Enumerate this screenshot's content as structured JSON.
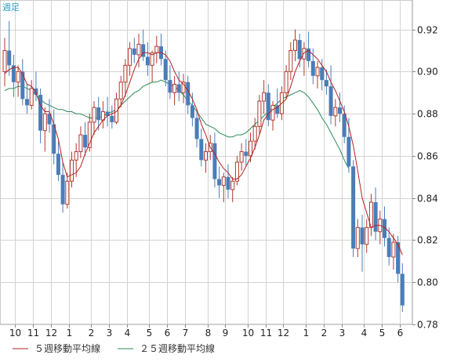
{
  "chart_data": {
    "type": "candlestick",
    "title": "週足",
    "y_ticks": [
      "0.92",
      "0.90",
      "0.88",
      "0.86",
      "0.84",
      "0.82",
      "0.80",
      "0.78"
    ],
    "y_tick_values": [
      0.92,
      0.9,
      0.88,
      0.86,
      0.84,
      0.82,
      0.8,
      0.78
    ],
    "ylim": [
      0.78,
      0.934
    ],
    "x_tick_labels": [
      "10",
      "11",
      "12",
      "1",
      "2",
      "3",
      "4",
      "5",
      "6",
      "7",
      "8",
      "9",
      "10",
      "11",
      "12",
      "1",
      "2",
      "3",
      "4",
      "5",
      "6"
    ],
    "x_tick_bars": [
      2,
      6,
      10,
      14,
      19,
      23,
      27,
      32,
      36,
      40,
      45,
      49,
      54,
      58,
      62,
      67,
      71,
      75,
      80,
      84,
      88
    ],
    "grid": true,
    "legend": [
      {
        "name": "５週移動平均線",
        "color": "#b22222"
      },
      {
        "name": "２５週移動平均線",
        "color": "#2e8b57"
      }
    ],
    "colors": {
      "up": "#b03a2e",
      "down": "#4a7db8",
      "ma5": "#b22222",
      "ma25": "#2e8b57"
    },
    "ohlc": [
      [
        0.9,
        0.916,
        0.893,
        0.91
      ],
      [
        0.91,
        0.924,
        0.898,
        0.903
      ],
      [
        0.903,
        0.908,
        0.888,
        0.895
      ],
      [
        0.895,
        0.903,
        0.888,
        0.9
      ],
      [
        0.9,
        0.906,
        0.884,
        0.887
      ],
      [
        0.887,
        0.894,
        0.88,
        0.884
      ],
      [
        0.884,
        0.896,
        0.882,
        0.892
      ],
      [
        0.892,
        0.9,
        0.886,
        0.889
      ],
      [
        0.889,
        0.892,
        0.866,
        0.872
      ],
      [
        0.872,
        0.883,
        0.862,
        0.88
      ],
      [
        0.88,
        0.887,
        0.871,
        0.875
      ],
      [
        0.875,
        0.882,
        0.856,
        0.861
      ],
      [
        0.861,
        0.867,
        0.848,
        0.851
      ],
      [
        0.851,
        0.857,
        0.833,
        0.837
      ],
      [
        0.837,
        0.852,
        0.835,
        0.848
      ],
      [
        0.848,
        0.862,
        0.845,
        0.858
      ],
      [
        0.858,
        0.866,
        0.85,
        0.862
      ],
      [
        0.862,
        0.874,
        0.859,
        0.87
      ],
      [
        0.87,
        0.876,
        0.86,
        0.864
      ],
      [
        0.864,
        0.88,
        0.862,
        0.876
      ],
      [
        0.876,
        0.886,
        0.87,
        0.883
      ],
      [
        0.883,
        0.888,
        0.872,
        0.877
      ],
      [
        0.877,
        0.886,
        0.873,
        0.881
      ],
      [
        0.881,
        0.888,
        0.874,
        0.879
      ],
      [
        0.879,
        0.884,
        0.873,
        0.876
      ],
      [
        0.876,
        0.89,
        0.875,
        0.887
      ],
      [
        0.887,
        0.898,
        0.883,
        0.895
      ],
      [
        0.895,
        0.906,
        0.888,
        0.903
      ],
      [
        0.903,
        0.914,
        0.898,
        0.911
      ],
      [
        0.911,
        0.916,
        0.904,
        0.908
      ],
      [
        0.908,
        0.918,
        0.902,
        0.913
      ],
      [
        0.913,
        0.92,
        0.905,
        0.907
      ],
      [
        0.907,
        0.914,
        0.898,
        0.903
      ],
      [
        0.903,
        0.91,
        0.895,
        0.909
      ],
      [
        0.909,
        0.917,
        0.904,
        0.912
      ],
      [
        0.912,
        0.918,
        0.903,
        0.906
      ],
      [
        0.906,
        0.91,
        0.893,
        0.896
      ],
      [
        0.896,
        0.903,
        0.887,
        0.89
      ],
      [
        0.89,
        0.898,
        0.884,
        0.894
      ],
      [
        0.894,
        0.9,
        0.886,
        0.89
      ],
      [
        0.89,
        0.899,
        0.885,
        0.895
      ],
      [
        0.895,
        0.898,
        0.88,
        0.884
      ],
      [
        0.884,
        0.89,
        0.874,
        0.878
      ],
      [
        0.878,
        0.882,
        0.864,
        0.868
      ],
      [
        0.868,
        0.873,
        0.855,
        0.858
      ],
      [
        0.858,
        0.866,
        0.852,
        0.862
      ],
      [
        0.862,
        0.87,
        0.858,
        0.866
      ],
      [
        0.866,
        0.871,
        0.845,
        0.849
      ],
      [
        0.849,
        0.855,
        0.84,
        0.846
      ],
      [
        0.846,
        0.852,
        0.838,
        0.85
      ],
      [
        0.85,
        0.856,
        0.84,
        0.844
      ],
      [
        0.844,
        0.85,
        0.838,
        0.848
      ],
      [
        0.848,
        0.86,
        0.846,
        0.857
      ],
      [
        0.857,
        0.866,
        0.853,
        0.862
      ],
      [
        0.862,
        0.868,
        0.855,
        0.86
      ],
      [
        0.86,
        0.871,
        0.857,
        0.867
      ],
      [
        0.867,
        0.878,
        0.863,
        0.874
      ],
      [
        0.874,
        0.889,
        0.87,
        0.886
      ],
      [
        0.886,
        0.896,
        0.88,
        0.89
      ],
      [
        0.89,
        0.894,
        0.874,
        0.877
      ],
      [
        0.877,
        0.886,
        0.872,
        0.884
      ],
      [
        0.884,
        0.892,
        0.878,
        0.88
      ],
      [
        0.88,
        0.893,
        0.877,
        0.89
      ],
      [
        0.89,
        0.903,
        0.887,
        0.9
      ],
      [
        0.9,
        0.914,
        0.896,
        0.91
      ],
      [
        0.91,
        0.92,
        0.905,
        0.915
      ],
      [
        0.915,
        0.918,
        0.902,
        0.906
      ],
      [
        0.906,
        0.914,
        0.898,
        0.911
      ],
      [
        0.911,
        0.919,
        0.902,
        0.905
      ],
      [
        0.905,
        0.911,
        0.894,
        0.898
      ],
      [
        0.898,
        0.905,
        0.892,
        0.902
      ],
      [
        0.902,
        0.906,
        0.891,
        0.896
      ],
      [
        0.896,
        0.901,
        0.889,
        0.893
      ],
      [
        0.893,
        0.903,
        0.875,
        0.879
      ],
      [
        0.879,
        0.887,
        0.874,
        0.883
      ],
      [
        0.883,
        0.89,
        0.876,
        0.88
      ],
      [
        0.88,
        0.884,
        0.866,
        0.869
      ],
      [
        0.869,
        0.878,
        0.852,
        0.855
      ],
      [
        0.855,
        0.858,
        0.812,
        0.816
      ],
      [
        0.816,
        0.83,
        0.812,
        0.826
      ],
      [
        0.826,
        0.832,
        0.805,
        0.818
      ],
      [
        0.818,
        0.83,
        0.814,
        0.826
      ],
      [
        0.826,
        0.842,
        0.822,
        0.838
      ],
      [
        0.838,
        0.845,
        0.82,
        0.824
      ],
      [
        0.824,
        0.834,
        0.818,
        0.83
      ],
      [
        0.83,
        0.836,
        0.817,
        0.821
      ],
      [
        0.821,
        0.826,
        0.808,
        0.812
      ],
      [
        0.812,
        0.823,
        0.806,
        0.819
      ],
      [
        0.819,
        0.822,
        0.8,
        0.804
      ],
      [
        0.804,
        0.809,
        0.786,
        0.789
      ]
    ],
    "ma5": [
      0.899,
      0.901,
      0.902,
      0.902,
      0.899,
      0.894,
      0.893,
      0.89,
      0.884,
      0.881,
      0.881,
      0.875,
      0.868,
      0.857,
      0.85,
      0.851,
      0.852,
      0.855,
      0.861,
      0.866,
      0.871,
      0.874,
      0.877,
      0.879,
      0.88,
      0.881,
      0.884,
      0.889,
      0.895,
      0.901,
      0.906,
      0.909,
      0.909,
      0.908,
      0.909,
      0.909,
      0.908,
      0.905,
      0.9,
      0.896,
      0.894,
      0.891,
      0.887,
      0.882,
      0.875,
      0.87,
      0.864,
      0.861,
      0.857,
      0.854,
      0.852,
      0.849,
      0.849,
      0.851,
      0.855,
      0.859,
      0.864,
      0.87,
      0.877,
      0.88,
      0.882,
      0.883,
      0.885,
      0.887,
      0.893,
      0.9,
      0.905,
      0.909,
      0.91,
      0.908,
      0.906,
      0.903,
      0.9,
      0.895,
      0.891,
      0.886,
      0.881,
      0.874,
      0.865,
      0.853,
      0.84,
      0.833,
      0.826,
      0.827,
      0.827,
      0.826,
      0.824,
      0.821,
      0.818,
      0.813
    ],
    "ma25": [
      0.891,
      0.892,
      0.892,
      0.893,
      0.893,
      0.892,
      0.891,
      0.889,
      0.887,
      0.885,
      0.884,
      0.883,
      0.882,
      0.882,
      0.881,
      0.881,
      0.88,
      0.88,
      0.879,
      0.878,
      0.878,
      0.878,
      0.879,
      0.88,
      0.881,
      0.882,
      0.884,
      0.886,
      0.888,
      0.89,
      0.891,
      0.893,
      0.894,
      0.895,
      0.895,
      0.896,
      0.895,
      0.894,
      0.893,
      0.891,
      0.889,
      0.886,
      0.884,
      0.881,
      0.878,
      0.875,
      0.874,
      0.873,
      0.871,
      0.87,
      0.869,
      0.869,
      0.87,
      0.87,
      0.871,
      0.873,
      0.875,
      0.877,
      0.879,
      0.881,
      0.883,
      0.885,
      0.887,
      0.888,
      0.889,
      0.89,
      0.891,
      0.89,
      0.888,
      0.885,
      0.882,
      0.878,
      0.875,
      0.871,
      0.867,
      0.863,
      0.858,
      0.854
    ]
  }
}
